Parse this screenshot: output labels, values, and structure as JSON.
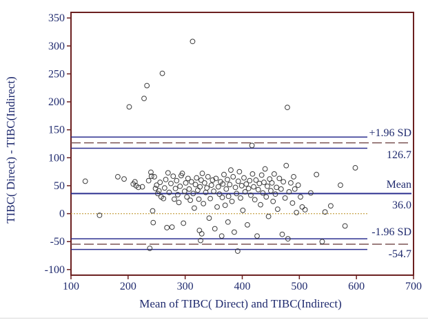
{
  "colors": {
    "frame": "#6b1f1f",
    "text": "#1f2a6e",
    "line": "#2b2f8f",
    "dashed": "#7a5252",
    "zero": "#c8a44a",
    "points": "#3a3a3a"
  },
  "chart_data": {
    "type": "scatter",
    "xlabel": "Mean of TIBC( Direct) and TIBC(Indirect)",
    "ylabel": "TIBC( Direct) - TIBC(Indirect)",
    "xlim": [
      100,
      700
    ],
    "ylim": [
      -110,
      360
    ],
    "xticks": [
      100,
      200,
      300,
      400,
      500,
      600,
      700
    ],
    "yticks": [
      -100,
      -50,
      0,
      50,
      100,
      150,
      200,
      250,
      300,
      350
    ],
    "grid": false,
    "reference_lines": {
      "zero": 0,
      "mean": 36.0,
      "mean_ci": [
        31.0,
        41.0
      ],
      "upper_loa": 126.7,
      "upper_loa_ci": [
        117.0,
        137.0
      ],
      "lower_loa": -54.7,
      "lower_loa_ci": [
        -64.0,
        -45.0
      ],
      "mean_label": "Mean",
      "mean_value_label": "36.0",
      "upper_label": "+1.96 SD",
      "upper_value_label": "126.7",
      "lower_label": "-1.96 SD",
      "lower_value_label": "-54.7"
    },
    "points": [
      [
        125,
        58
      ],
      [
        150,
        -3
      ],
      [
        182,
        66
      ],
      [
        193,
        62
      ],
      [
        202,
        191
      ],
      [
        209,
        53
      ],
      [
        212,
        57
      ],
      [
        214,
        50
      ],
      [
        218,
        47
      ],
      [
        225,
        48
      ],
      [
        228,
        206
      ],
      [
        233,
        229
      ],
      [
        238,
        -62
      ],
      [
        236,
        59
      ],
      [
        240,
        74
      ],
      [
        241,
        67
      ],
      [
        243,
        5
      ],
      [
        244,
        -16
      ],
      [
        246,
        66
      ],
      [
        248,
        45
      ],
      [
        250,
        51
      ],
      [
        252,
        36
      ],
      [
        254,
        41
      ],
      [
        256,
        56
      ],
      [
        258,
        30
      ],
      [
        260,
        251
      ],
      [
        262,
        27
      ],
      [
        264,
        46
      ],
      [
        266,
        61
      ],
      [
        268,
        -25
      ],
      [
        270,
        73
      ],
      [
        272,
        38
      ],
      [
        275,
        54
      ],
      [
        277,
        -24
      ],
      [
        279,
        67
      ],
      [
        281,
        26
      ],
      [
        283,
        45
      ],
      [
        285,
        59
      ],
      [
        287,
        34
      ],
      [
        289,
        20
      ],
      [
        291,
        49
      ],
      [
        293,
        68
      ],
      [
        295,
        72
      ],
      [
        297,
        -17
      ],
      [
        299,
        40
      ],
      [
        301,
        55
      ],
      [
        303,
        30
      ],
      [
        305,
        63
      ],
      [
        307,
        44
      ],
      [
        309,
        24
      ],
      [
        311,
        57
      ],
      [
        313,
        308
      ],
      [
        314,
        36
      ],
      [
        316,
        10
      ],
      [
        318,
        52
      ],
      [
        320,
        64
      ],
      [
        322,
        42
      ],
      [
        324,
        26
      ],
      [
        325,
        -30
      ],
      [
        326,
        48
      ],
      [
        327,
        -48
      ],
      [
        328,
        60
      ],
      [
        329,
        -36
      ],
      [
        330,
        72
      ],
      [
        332,
        18
      ],
      [
        334,
        55
      ],
      [
        336,
        38
      ],
      [
        338,
        46
      ],
      [
        340,
        66
      ],
      [
        342,
        -8
      ],
      [
        344,
        27
      ],
      [
        346,
        51
      ],
      [
        348,
        60
      ],
      [
        350,
        40
      ],
      [
        352,
        -27
      ],
      [
        354,
        63
      ],
      [
        356,
        12
      ],
      [
        358,
        48
      ],
      [
        360,
        35
      ],
      [
        362,
        57
      ],
      [
        364,
        -40
      ],
      [
        365,
        29
      ],
      [
        366,
        53
      ],
      [
        368,
        70
      ],
      [
        370,
        15
      ],
      [
        372,
        44
      ],
      [
        374,
        61
      ],
      [
        375,
        -15
      ],
      [
        376,
        31
      ],
      [
        378,
        52
      ],
      [
        380,
        78
      ],
      [
        382,
        22
      ],
      [
        384,
        66
      ],
      [
        386,
        -33
      ],
      [
        388,
        47
      ],
      [
        390,
        36
      ],
      [
        392,
        -67
      ],
      [
        393,
        58
      ],
      [
        395,
        75
      ],
      [
        397,
        28
      ],
      [
        399,
        50
      ],
      [
        401,
        6
      ],
      [
        403,
        64
      ],
      [
        405,
        39
      ],
      [
        407,
        53
      ],
      [
        409,
        -20
      ],
      [
        411,
        45
      ],
      [
        413,
        59
      ],
      [
        415,
        33
      ],
      [
        417,
        122
      ],
      [
        418,
        71
      ],
      [
        420,
        48
      ],
      [
        422,
        25
      ],
      [
        424,
        60
      ],
      [
        426,
        -40
      ],
      [
        428,
        43
      ],
      [
        430,
        54
      ],
      [
        432,
        16
      ],
      [
        434,
        69
      ],
      [
        436,
        37
      ],
      [
        438,
        56
      ],
      [
        440,
        80
      ],
      [
        442,
        30
      ],
      [
        444,
        49
      ],
      [
        446,
        -5
      ],
      [
        448,
        62
      ],
      [
        450,
        41
      ],
      [
        452,
        55
      ],
      [
        454,
        22
      ],
      [
        456,
        71
      ],
      [
        458,
        35
      ],
      [
        460,
        47
      ],
      [
        462,
        8
      ],
      [
        465,
        63
      ],
      [
        468,
        44
      ],
      [
        470,
        -37
      ],
      [
        472,
        57
      ],
      [
        475,
        28
      ],
      [
        477,
        86
      ],
      [
        479,
        190
      ],
      [
        480,
        -45
      ],
      [
        482,
        39
      ],
      [
        485,
        55
      ],
      [
        488,
        19
      ],
      [
        490,
        66
      ],
      [
        492,
        44
      ],
      [
        495,
        2
      ],
      [
        498,
        51
      ],
      [
        502,
        30
      ],
      [
        505,
        12
      ],
      [
        510,
        7
      ],
      [
        520,
        37
      ],
      [
        530,
        70
      ],
      [
        540,
        -50
      ],
      [
        545,
        3
      ],
      [
        555,
        14
      ],
      [
        572,
        51
      ],
      [
        580,
        -22
      ],
      [
        598,
        82
      ]
    ]
  }
}
